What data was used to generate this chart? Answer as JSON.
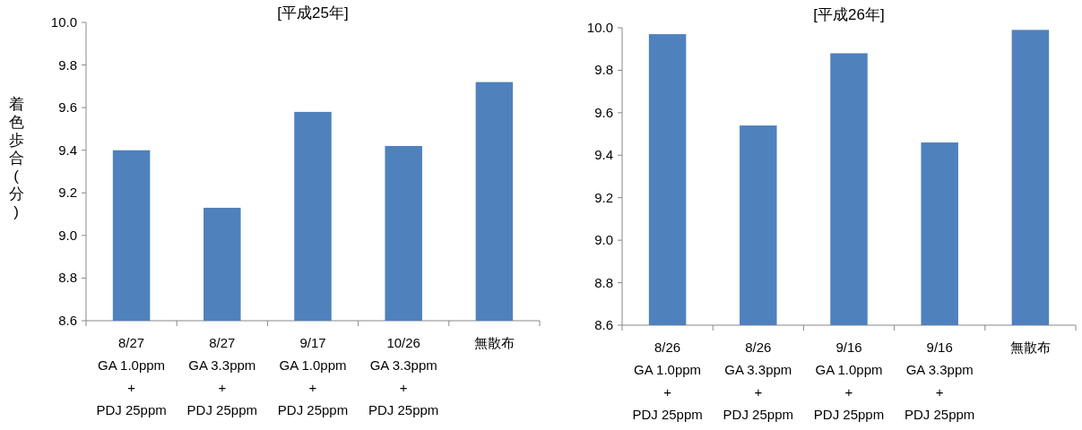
{
  "chart_data": [
    {
      "type": "bar",
      "title": "[平成25年]",
      "ylabel": "着色歩合(分)",
      "categories": [
        "8/27\nGA 1.0ppm\n+\nPDJ 25ppm",
        "8/27\nGA 3.3ppm\n+\nPDJ 25ppm",
        "9/17\nGA 1.0ppm\n+\nPDJ 25ppm",
        "10/26\nGA 3.3ppm\n+\nPDJ 25ppm",
        "無散布"
      ],
      "values": [
        9.4,
        9.13,
        9.58,
        9.42,
        9.72
      ],
      "color": "#4f81bd",
      "ylim": [
        8.6,
        10.0
      ],
      "yticks": [
        {
          "value": 8.6,
          "label": "8.6"
        },
        {
          "value": 8.8,
          "label": "8.8"
        },
        {
          "value": 9.0,
          "label": "9.0"
        },
        {
          "value": 9.2,
          "label": "9.2"
        },
        {
          "value": 9.4,
          "label": "9.4"
        },
        {
          "value": 9.6,
          "label": "9.6"
        },
        {
          "value": 9.8,
          "label": "9.8"
        },
        {
          "value": 10.0,
          "label": "10.0"
        }
      ]
    },
    {
      "type": "bar",
      "title": "[平成26年]",
      "categories": [
        "8/26\nGA 1.0ppm\n+\nPDJ 25ppm",
        "8/26\nGA 3.3ppm\n+\nPDJ 25ppm",
        "9/16\nGA 1.0ppm\n+\nPDJ 25ppm",
        "9/16\nGA 3.3ppm\n+\nPDJ 25ppm",
        "無散布"
      ],
      "values": [
        9.97,
        9.54,
        9.88,
        9.46,
        9.99
      ],
      "color": "#4f81bd",
      "ylim": [
        8.6,
        10.0
      ],
      "yticks": [
        {
          "value": 8.6,
          "label": "8.6"
        },
        {
          "value": 8.8,
          "label": "8.8"
        },
        {
          "value": 9.0,
          "label": "9.0"
        },
        {
          "value": 9.2,
          "label": "9.2"
        },
        {
          "value": 9.4,
          "label": "9.4"
        },
        {
          "value": 9.6,
          "label": "9.6"
        },
        {
          "value": 9.8,
          "label": "9.8"
        },
        {
          "value": 10.0,
          "label": "10.0"
        }
      ]
    }
  ]
}
